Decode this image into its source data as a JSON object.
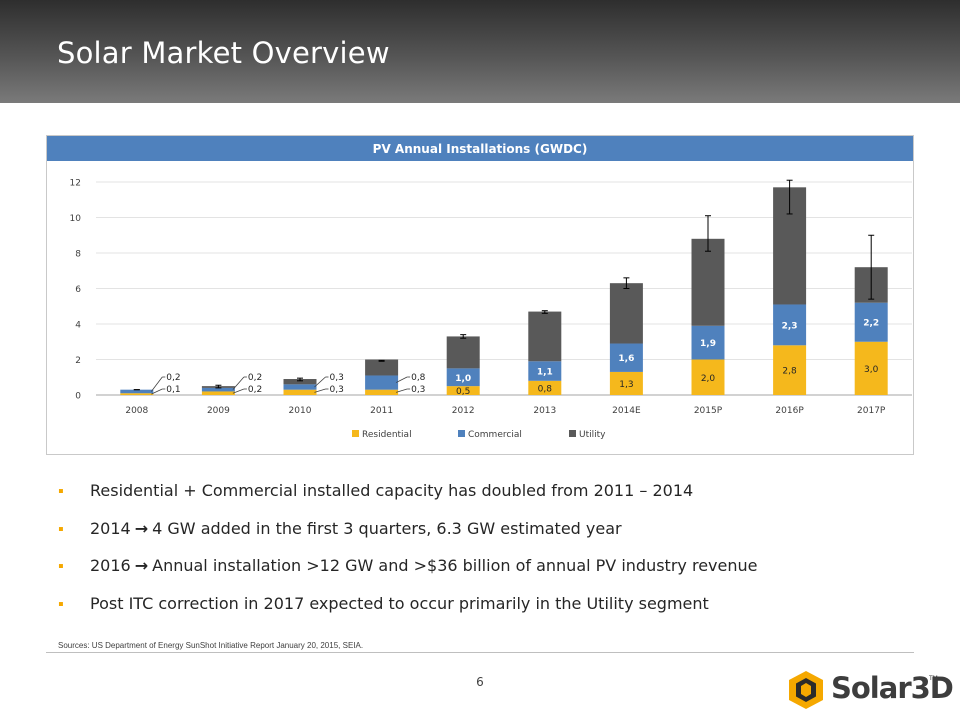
{
  "slide": {
    "title": "Solar Market Overview",
    "page_number": "6",
    "sources": "Sources:  US Department of Energy SunShot Initiative Report January 20, 2015, SEIA.",
    "logo_text": "Solar3D",
    "logo_tm": "TM"
  },
  "bullets": [
    {
      "text": "Residential + Commercial installed capacity has doubled from 2011 – 2014"
    },
    {
      "lead": "2014",
      "arrow": "→",
      "rest": "4 GW added in the first 3 quarters, 6.3 GW estimated year"
    },
    {
      "lead": "2016",
      "arrow": "→",
      "rest": "Annual installation >12 GW and >$36 billion of annual PV industry revenue"
    },
    {
      "text": "Post ITC correction in 2017 expected to occur primarily in the Utility segment"
    }
  ],
  "colors": {
    "residential": "#f5b81c",
    "commercial": "#4f81bd",
    "utility": "#595959",
    "bullet": "#f5a800",
    "title_bar": "#4f81bd"
  },
  "chart_data": {
    "type": "bar",
    "stacked": true,
    "title": "PV Annual Installations (GWDC)",
    "categories": [
      "2008",
      "2009",
      "2010",
      "2011",
      "2012",
      "2013",
      "2014E",
      "2015P",
      "2016P",
      "2017P"
    ],
    "series": [
      {
        "name": "Residential",
        "values": [
          0.1,
          0.2,
          0.3,
          0.3,
          0.5,
          0.8,
          1.3,
          2.0,
          2.8,
          3.0
        ]
      },
      {
        "name": "Commercial",
        "values": [
          0.2,
          0.2,
          0.3,
          0.8,
          1.0,
          1.1,
          1.6,
          1.9,
          2.3,
          2.2
        ]
      },
      {
        "name": "Utility",
        "values": [
          0.0,
          0.1,
          0.3,
          0.9,
          1.8,
          2.8,
          3.4,
          4.9,
          6.6,
          2.0
        ]
      }
    ],
    "data_labels": {
      "residential": [
        "0,1",
        "0,2",
        "0,3",
        "0,3",
        "0,5",
        "0,8",
        "1,3",
        "2,0",
        "2,8",
        "3,0"
      ],
      "commercial": [
        "0,2",
        "0,2",
        "0,3",
        "0,8",
        "1,0",
        "1,1",
        "1,6",
        "1,9",
        "2,3",
        "2,2"
      ]
    },
    "error_bars": [
      {
        "low": 0.3,
        "high": 0.3
      },
      {
        "low": 0.4,
        "high": 0.55
      },
      {
        "low": 0.8,
        "high": 0.95
      },
      {
        "low": 1.9,
        "high": 1.95
      },
      {
        "low": 3.2,
        "high": 3.4
      },
      {
        "low": 4.6,
        "high": 4.75
      },
      {
        "low": 6.0,
        "high": 6.6
      },
      {
        "low": 8.1,
        "high": 10.1
      },
      {
        "low": 10.2,
        "high": 12.1
      },
      {
        "low": 5.4,
        "high": 9.0
      }
    ],
    "ylim": [
      0,
      12
    ],
    "yticks": [
      0,
      2,
      4,
      6,
      8,
      10,
      12
    ],
    "grid": true,
    "legend_position": "bottom"
  }
}
